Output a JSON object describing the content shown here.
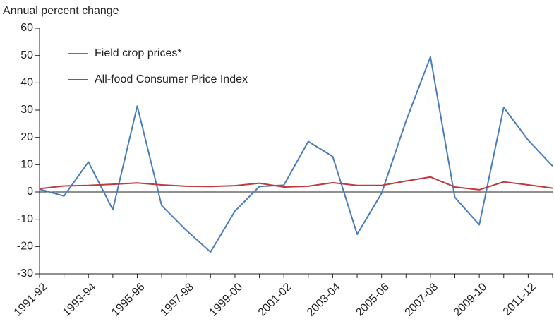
{
  "chart_data": {
    "type": "line",
    "y_label": "Annual percent change",
    "categories": [
      "1991-92",
      null,
      "1993-94",
      null,
      "1995-96",
      null,
      "1997-98",
      null,
      "1999-00",
      null,
      "2001-02",
      null,
      "2003-04",
      null,
      "2005-06",
      null,
      "2007-08",
      null,
      "2009-10",
      null,
      "2011-12",
      null
    ],
    "series": [
      {
        "name": "Field crop prices*",
        "color": "#4a7ebb",
        "values": [
          1,
          -1.5,
          11,
          -6.5,
          31.5,
          -5,
          -14,
          -22,
          -7,
          2,
          2.5,
          18.5,
          13,
          -15.5,
          -0.5,
          26,
          49.5,
          -2,
          -12,
          31,
          19,
          9.5
        ]
      },
      {
        "name": "All-food Consumer Price Index",
        "color": "#be3a3c",
        "values": [
          1.2,
          2.2,
          2.4,
          2.8,
          3.3,
          2.6,
          2.1,
          2.0,
          2.3,
          3.2,
          1.8,
          2.1,
          3.4,
          2.4,
          2.4,
          4.0,
          5.5,
          1.8,
          0.8,
          3.7,
          2.6,
          1.4
        ]
      }
    ],
    "ylim": [
      -30,
      60
    ],
    "yticks": [
      -30,
      -20,
      -10,
      0,
      10,
      20,
      30,
      40,
      50,
      60
    ],
    "legend": "upper left"
  }
}
